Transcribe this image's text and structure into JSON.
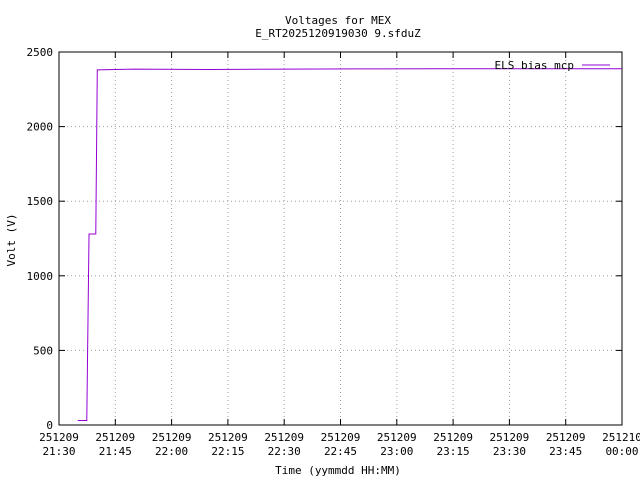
{
  "chart_data": {
    "type": "line",
    "title": "Voltages for MEX",
    "subtitle": "E_RT2025120919030 9.sfduZ",
    "x_label": "Time (yymmdd HH:MM)",
    "y_label": "Volt (V)",
    "x": [
      5,
      7.4,
      8.0,
      9.8,
      10.2,
      20,
      40,
      60,
      80,
      100,
      120,
      150
    ],
    "series": [
      {
        "name": "ELS bias mcp",
        "color": "#9400d3",
        "values": [
          30,
          30,
          1280,
          1280,
          2380,
          2385,
          2383,
          2385,
          2387,
          2388,
          2388,
          2388
        ]
      }
    ],
    "xlim": [
      0,
      150
    ],
    "xticks": [
      {
        "value": 0,
        "label": [
          "251209",
          "21:30"
        ]
      },
      {
        "value": 15,
        "label": [
          "251209",
          "21:45"
        ]
      },
      {
        "value": 30,
        "label": [
          "251209",
          "22:00"
        ]
      },
      {
        "value": 45,
        "label": [
          "251209",
          "22:15"
        ]
      },
      {
        "value": 60,
        "label": [
          "251209",
          "22:30"
        ]
      },
      {
        "value": 75,
        "label": [
          "251209",
          "22:45"
        ]
      },
      {
        "value": 90,
        "label": [
          "251209",
          "23:00"
        ]
      },
      {
        "value": 105,
        "label": [
          "251209",
          "23:15"
        ]
      },
      {
        "value": 120,
        "label": [
          "251209",
          "23:30"
        ]
      },
      {
        "value": 135,
        "label": [
          "251209",
          "23:45"
        ]
      },
      {
        "value": 150,
        "label": [
          "251210",
          "00:00"
        ]
      }
    ],
    "ylim": [
      0,
      2500
    ],
    "yticks": [
      0,
      500,
      1000,
      1500,
      2000,
      2500
    ],
    "grid": true,
    "legend": "top-right"
  }
}
